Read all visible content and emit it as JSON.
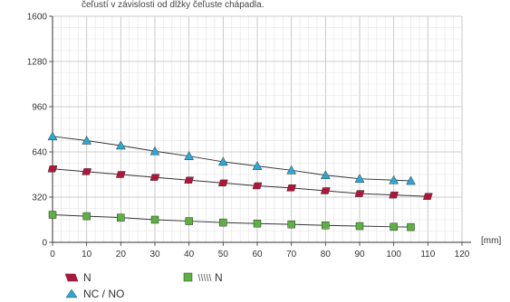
{
  "caption": "čeľustí v závislosti od dĺžky čeľuste chápadla.",
  "chart_data": {
    "type": "line",
    "xlabel": "[mm]",
    "ylabel": "",
    "xlim": [
      0,
      120
    ],
    "ylim": [
      0,
      1600
    ],
    "x_ticks": [
      0,
      10,
      20,
      30,
      40,
      50,
      60,
      70,
      80,
      90,
      100,
      110,
      120
    ],
    "y_ticks": [
      0,
      320,
      640,
      960,
      1280,
      1600
    ],
    "grid": true,
    "legend_position": "bottom-left",
    "series": [
      {
        "name": "NC / NO",
        "marker": "triangle",
        "color": "#2aa9d6",
        "x": [
          0,
          10,
          20,
          30,
          40,
          50,
          60,
          70,
          80,
          90,
          100,
          105
        ],
        "y": [
          750,
          720,
          685,
          645,
          610,
          570,
          540,
          510,
          475,
          450,
          440,
          435
        ]
      },
      {
        "name": "N",
        "marker": "parallelogram",
        "color": "#b5143a",
        "x": [
          0,
          10,
          20,
          30,
          40,
          50,
          60,
          70,
          80,
          90,
          100,
          110
        ],
        "y": [
          520,
          500,
          480,
          460,
          440,
          420,
          400,
          385,
          365,
          345,
          335,
          325
        ]
      },
      {
        "name": "N",
        "marker": "square",
        "color": "#5ab33e",
        "x": [
          0,
          10,
          20,
          30,
          40,
          50,
          60,
          70,
          80,
          90,
          100,
          105
        ],
        "y": [
          195,
          185,
          175,
          160,
          150,
          140,
          133,
          127,
          120,
          115,
          110,
          108
        ]
      }
    ]
  },
  "legend": [
    {
      "label": "N",
      "marker": "parallelogram",
      "color": "#b5143a"
    },
    {
      "label": "N",
      "marker": "square-with-spring-icon",
      "color": "#5ab33e"
    },
    {
      "label": "NC / NO",
      "marker": "triangle",
      "color": "#2aa9d6"
    }
  ]
}
